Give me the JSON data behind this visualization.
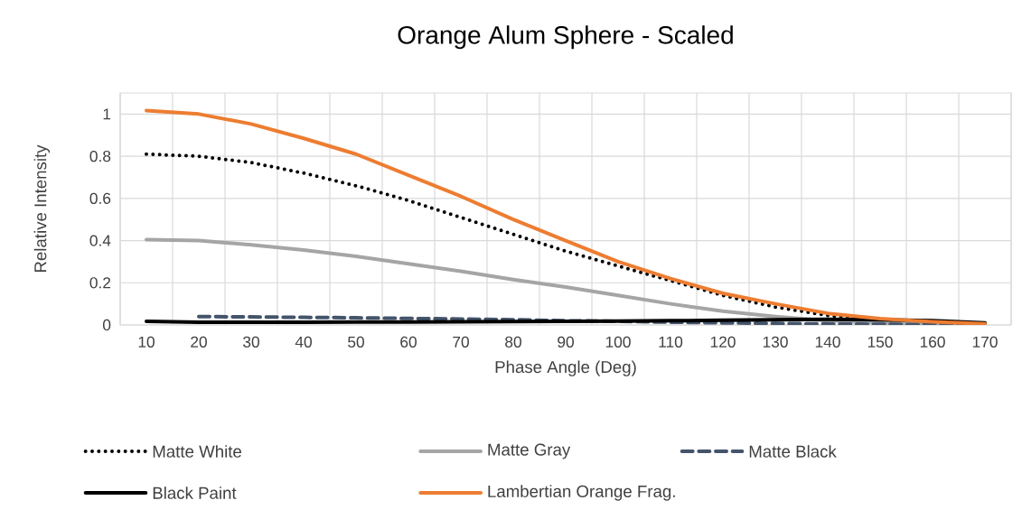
{
  "chart_data": {
    "type": "line",
    "title": "Orange Alum Sphere - Scaled",
    "xlabel": "Phase Angle (Deg)",
    "ylabel": "Relative Intensity",
    "categories": [
      "10",
      "20",
      "30",
      "40",
      "50",
      "60",
      "70",
      "80",
      "90",
      "100",
      "110",
      "120",
      "130",
      "140",
      "150",
      "160",
      "170"
    ],
    "ylim": [
      0,
      1.1
    ],
    "yticks": [
      0,
      0.2,
      0.4,
      0.6,
      0.8,
      1
    ],
    "grid": true,
    "legend": "bottom",
    "series": [
      {
        "name": "Matte White",
        "color": "#000000",
        "line_style": "dotted",
        "values": [
          0.81,
          0.8,
          0.77,
          0.72,
          0.66,
          0.59,
          0.51,
          0.43,
          0.35,
          0.28,
          0.21,
          0.14,
          0.085,
          0.045,
          0.02,
          0.01,
          0.005
        ]
      },
      {
        "name": "Matte Gray",
        "color": "#a5a5a5",
        "line_style": "solid",
        "values": [
          0.405,
          0.4,
          0.38,
          0.355,
          0.325,
          0.29,
          0.255,
          0.215,
          0.18,
          0.14,
          0.1,
          0.065,
          0.04,
          0.02,
          0.01,
          0.005,
          0.003
        ]
      },
      {
        "name": "Matte Black",
        "color": "#44546a",
        "line_style": "dashed",
        "values": [
          null,
          0.04,
          0.038,
          0.036,
          0.034,
          0.031,
          0.028,
          0.025,
          0.02,
          0.017,
          0.013,
          0.01,
          0.007,
          0.005,
          0.003,
          0.002,
          0.001
        ]
      },
      {
        "name": "Black Paint",
        "color": "#000000",
        "line_style": "solid",
        "values": [
          0.017,
          0.013,
          0.013,
          0.013,
          0.014,
          0.014,
          0.015,
          0.016,
          0.017,
          0.018,
          0.02,
          0.022,
          0.025,
          0.027,
          0.025,
          0.02,
          0.01
        ]
      },
      {
        "name": "Lambertian Orange Frag.",
        "color": "#ed7d31",
        "line_style": "solid",
        "values": [
          1.017,
          1.0,
          0.953,
          0.885,
          0.81,
          0.71,
          0.61,
          0.5,
          0.4,
          0.3,
          0.22,
          0.15,
          0.1,
          0.055,
          0.03,
          0.015,
          0.005
        ]
      }
    ]
  }
}
